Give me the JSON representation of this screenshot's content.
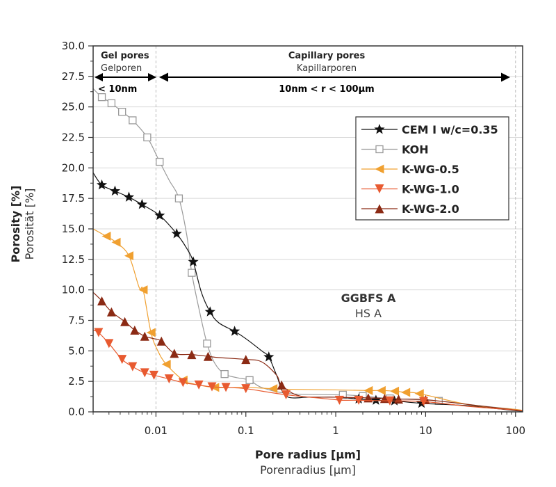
{
  "chart_data": {
    "type": "line",
    "x_scale": "log",
    "xlim": [
      0.002,
      120
    ],
    "ylim": [
      0,
      30
    ],
    "xlabel": "Pore radius [µm]",
    "xlabel_secondary": "Porenradius [µm]",
    "ylabel": "Porosity [%]",
    "ylabel_secondary": "Porosität [%]",
    "x_ticks": [
      0.01,
      0.1,
      1,
      10,
      100
    ],
    "x_tick_labels": [
      "0.01",
      "0.1",
      "1",
      "10",
      "100"
    ],
    "y_ticks": [
      0,
      2.5,
      5,
      7.5,
      10,
      12.5,
      15,
      17.5,
      20,
      22.5,
      25,
      27.5,
      30
    ],
    "y_tick_labels": [
      "0.0",
      "2.5",
      "5.0",
      "7.5",
      "10.0",
      "12.5",
      "15.0",
      "17.5",
      "20.0",
      "22.5",
      "25.0",
      "27.5",
      "30.0"
    ],
    "grid": "horizontal",
    "legend_position": "top-right",
    "annotations": {
      "gel_title": "Gel pores",
      "gel_subtitle": "Gelporen",
      "gel_range": "< 10nm",
      "cap_title": "Capillary pores",
      "cap_subtitle": "Kapillarporen",
      "cap_range": "10nm < r < 100µm",
      "sample_title": "GGBFS A",
      "sample_subtitle": "HS A"
    },
    "series": [
      {
        "name": "CEM I w/c=0.35",
        "color": "#111111",
        "marker": "star",
        "points": [
          [
            0.002,
            19.6
          ],
          [
            0.0025,
            18.6
          ],
          [
            0.0035,
            18.1
          ],
          [
            0.005,
            17.6
          ],
          [
            0.007,
            17.0
          ],
          [
            0.011,
            16.1
          ],
          [
            0.017,
            14.6
          ],
          [
            0.022,
            13.4
          ],
          [
            0.026,
            12.3
          ],
          [
            0.032,
            9.8
          ],
          [
            0.04,
            8.2
          ],
          [
            0.05,
            7.3
          ],
          [
            0.075,
            6.6
          ],
          [
            0.1,
            6.0
          ],
          [
            0.15,
            5.0
          ],
          [
            0.18,
            4.5
          ],
          [
            0.22,
            3.0
          ],
          [
            0.28,
            1.3
          ],
          [
            0.5,
            1.2
          ],
          [
            1,
            1.2
          ],
          [
            1.8,
            1.05
          ],
          [
            2.8,
            0.95
          ],
          [
            4.5,
            0.9
          ],
          [
            9,
            0.7
          ],
          [
            30,
            0.5
          ],
          [
            100,
            0.1
          ],
          [
            120,
            0.1
          ]
        ],
        "marker_points": [
          [
            0.0025,
            18.6
          ],
          [
            0.0035,
            18.1
          ],
          [
            0.005,
            17.6
          ],
          [
            0.007,
            17.0
          ],
          [
            0.011,
            16.1
          ],
          [
            0.017,
            14.6
          ],
          [
            0.026,
            12.3
          ],
          [
            0.04,
            8.2
          ],
          [
            0.075,
            6.6
          ],
          [
            0.18,
            4.5
          ],
          [
            1.8,
            1.05
          ],
          [
            2.8,
            0.95
          ],
          [
            4.5,
            0.9
          ],
          [
            9,
            0.7
          ]
        ]
      },
      {
        "name": "KOH",
        "color": "#9a9a9a",
        "marker": "square",
        "points": [
          [
            0.002,
            26.5
          ],
          [
            0.0025,
            25.8
          ],
          [
            0.0032,
            25.3
          ],
          [
            0.0042,
            24.6
          ],
          [
            0.0055,
            23.9
          ],
          [
            0.008,
            22.5
          ],
          [
            0.0105,
            20.8
          ],
          [
            0.011,
            20.5
          ],
          [
            0.014,
            19.0
          ],
          [
            0.018,
            17.5
          ],
          [
            0.022,
            14.5
          ],
          [
            0.025,
            11.4
          ],
          [
            0.03,
            8.5
          ],
          [
            0.037,
            5.6
          ],
          [
            0.045,
            4.0
          ],
          [
            0.058,
            3.1
          ],
          [
            0.08,
            2.8
          ],
          [
            0.11,
            2.6
          ],
          [
            0.15,
            2.0
          ],
          [
            0.3,
            1.5
          ],
          [
            1,
            1.4
          ],
          [
            1.2,
            1.4
          ],
          [
            2,
            1.3
          ],
          [
            4,
            1.1
          ],
          [
            14,
            0.9
          ],
          [
            40,
            0.5
          ],
          [
            100,
            0.2
          ],
          [
            120,
            0.1
          ]
        ],
        "marker_points": [
          [
            0.0025,
            25.8
          ],
          [
            0.0032,
            25.3
          ],
          [
            0.0042,
            24.6
          ],
          [
            0.0055,
            23.9
          ],
          [
            0.008,
            22.5
          ],
          [
            0.011,
            20.5
          ],
          [
            0.018,
            17.5
          ],
          [
            0.025,
            11.4
          ],
          [
            0.037,
            5.6
          ],
          [
            0.058,
            3.1
          ],
          [
            0.11,
            2.6
          ],
          [
            1.2,
            1.4
          ],
          [
            2,
            1.3
          ],
          [
            4,
            1.1
          ],
          [
            14,
            0.9
          ]
        ]
      },
      {
        "name": "K-WG-0.5",
        "color": "#f0a030",
        "marker": "triangle-left",
        "points": [
          [
            0.002,
            15.0
          ],
          [
            0.0025,
            14.6
          ],
          [
            0.0028,
            14.4
          ],
          [
            0.0036,
            13.9
          ],
          [
            0.005,
            12.8
          ],
          [
            0.0065,
            10.2
          ],
          [
            0.0072,
            10.0
          ],
          [
            0.0088,
            6.5
          ],
          [
            0.0105,
            5.0
          ],
          [
            0.013,
            3.9
          ],
          [
            0.02,
            2.6
          ],
          [
            0.026,
            2.3
          ],
          [
            0.045,
            2.0
          ],
          [
            0.1,
            2.0
          ],
          [
            0.2,
            1.9
          ],
          [
            0.3,
            1.85
          ],
          [
            1,
            1.8
          ],
          [
            2.3,
            1.75
          ],
          [
            3.2,
            1.75
          ],
          [
            4.5,
            1.7
          ],
          [
            6,
            1.6
          ],
          [
            8.5,
            1.5
          ],
          [
            30,
            0.6
          ],
          [
            100,
            0.2
          ],
          [
            120,
            0.1
          ]
        ],
        "marker_points": [
          [
            0.0028,
            14.4
          ],
          [
            0.0036,
            13.9
          ],
          [
            0.005,
            12.8
          ],
          [
            0.0072,
            10.0
          ],
          [
            0.0088,
            6.5
          ],
          [
            0.013,
            3.9
          ],
          [
            0.02,
            2.6
          ],
          [
            0.045,
            2.0
          ],
          [
            0.2,
            1.9
          ],
          [
            2.3,
            1.75
          ],
          [
            3.2,
            1.75
          ],
          [
            4.5,
            1.7
          ],
          [
            6,
            1.6
          ],
          [
            8.5,
            1.5
          ]
        ]
      },
      {
        "name": "K-WG-1.0",
        "color": "#e85a30",
        "marker": "triangle-down",
        "points": [
          [
            0.002,
            6.7
          ],
          [
            0.0023,
            6.5
          ],
          [
            0.003,
            5.6
          ],
          [
            0.0042,
            4.3
          ],
          [
            0.0055,
            3.7
          ],
          [
            0.0075,
            3.2
          ],
          [
            0.0095,
            3.0
          ],
          [
            0.014,
            2.7
          ],
          [
            0.02,
            2.4
          ],
          [
            0.03,
            2.2
          ],
          [
            0.042,
            2.05
          ],
          [
            0.06,
            2.0
          ],
          [
            0.1,
            1.9
          ],
          [
            0.28,
            1.4
          ],
          [
            1,
            1.0
          ],
          [
            1.1,
            0.95
          ],
          [
            1.8,
            0.95
          ],
          [
            4,
            0.9
          ],
          [
            9.5,
            0.85
          ],
          [
            30,
            0.45
          ],
          [
            100,
            0.15
          ],
          [
            120,
            0.1
          ]
        ],
        "marker_points": [
          [
            0.0023,
            6.5
          ],
          [
            0.003,
            5.6
          ],
          [
            0.0042,
            4.3
          ],
          [
            0.0055,
            3.7
          ],
          [
            0.0075,
            3.2
          ],
          [
            0.0095,
            3.0
          ],
          [
            0.014,
            2.7
          ],
          [
            0.02,
            2.4
          ],
          [
            0.03,
            2.2
          ],
          [
            0.042,
            2.05
          ],
          [
            0.06,
            2.0
          ],
          [
            0.1,
            1.9
          ],
          [
            0.28,
            1.4
          ],
          [
            1.1,
            0.95
          ],
          [
            1.8,
            0.95
          ],
          [
            4,
            0.9
          ],
          [
            9.5,
            0.85
          ]
        ]
      },
      {
        "name": "K-WG-2.0",
        "color": "#8b2a14",
        "marker": "triangle-up",
        "points": [
          [
            0.002,
            9.8
          ],
          [
            0.0025,
            9.1
          ],
          [
            0.0032,
            8.2
          ],
          [
            0.0045,
            7.4
          ],
          [
            0.0058,
            6.7
          ],
          [
            0.0075,
            6.2
          ],
          [
            0.0095,
            6.0
          ],
          [
            0.0115,
            5.8
          ],
          [
            0.016,
            4.8
          ],
          [
            0.025,
            4.7
          ],
          [
            0.038,
            4.55
          ],
          [
            0.05,
            4.45
          ],
          [
            0.1,
            4.3
          ],
          [
            0.15,
            4.1
          ],
          [
            0.22,
            3.0
          ],
          [
            0.25,
            2.2
          ],
          [
            0.4,
            1.3
          ],
          [
            1,
            1.2
          ],
          [
            2.3,
            1.15
          ],
          [
            3.5,
            1.1
          ],
          [
            5,
            1.05
          ],
          [
            10,
            1.0
          ],
          [
            30,
            0.6
          ],
          [
            100,
            0.15
          ],
          [
            120,
            0.1
          ]
        ],
        "marker_points": [
          [
            0.0025,
            9.1
          ],
          [
            0.0032,
            8.2
          ],
          [
            0.0045,
            7.4
          ],
          [
            0.0058,
            6.7
          ],
          [
            0.0075,
            6.2
          ],
          [
            0.0115,
            5.8
          ],
          [
            0.016,
            4.8
          ],
          [
            0.025,
            4.7
          ],
          [
            0.038,
            4.55
          ],
          [
            0.1,
            4.3
          ],
          [
            0.25,
            2.2
          ],
          [
            2.3,
            1.15
          ],
          [
            3.5,
            1.1
          ],
          [
            5,
            1.05
          ],
          [
            10,
            1.0
          ]
        ]
      }
    ]
  }
}
